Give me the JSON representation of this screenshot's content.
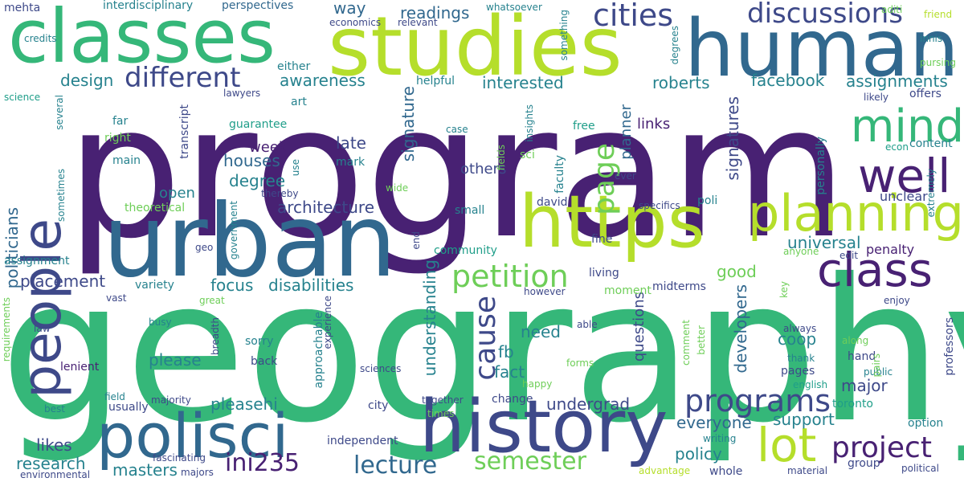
{
  "palette": {
    "background": "#ffffff",
    "dark_purple": "#482173",
    "indigo": "#3e4989",
    "blue": "#31688e",
    "teal": "#26828e",
    "sea_green": "#1f9e89",
    "green": "#35b779",
    "light_green": "#6ece58",
    "lime": "#b5de2b"
  },
  "words": [
    "program",
    "geography",
    "urban",
    "studies",
    "human",
    "classes",
    "history",
    "https",
    "polisci",
    "people",
    "planning",
    "class",
    "lot",
    "well",
    "mind",
    "cities",
    "discussions",
    "different",
    "petition",
    "programs",
    "project",
    "cause",
    "page",
    "semester",
    "lecture",
    "ini235",
    "architecture",
    "signatures",
    "developers",
    "signature",
    "degree",
    "houses",
    "interested",
    "readings",
    "way",
    "awareness",
    "design",
    "facebook",
    "assignments",
    "roberts",
    "universal",
    "support",
    "good",
    "focus",
    "disabilities",
    "placement",
    "please",
    "pleasehi",
    "understanding",
    "need",
    "fact",
    "fb",
    "undergrad",
    "everyone",
    "coop",
    "major",
    "politicians",
    "research",
    "likes",
    "masters",
    "policy",
    "independent",
    "questions",
    "late",
    "week",
    "open",
    "others",
    "links",
    "planner",
    "mark",
    "transcript",
    "theoretical",
    "interdisciplinary",
    "perspectives",
    "mehta",
    "credits",
    "economics",
    "relevant",
    "whatsoever",
    "aditi",
    "friend",
    "innis",
    "pursing",
    "degrees",
    "something",
    "either",
    "helpful",
    "lawyers",
    "art",
    "science",
    "several",
    "far",
    "right",
    "main",
    "guarantee",
    "use",
    "case",
    "insights",
    "fields",
    "sci",
    "free",
    "faculty",
    "ever",
    "likely",
    "offers",
    "econ",
    "content",
    "extremely",
    "personally",
    "unclear",
    "poli",
    "specifics",
    "david",
    "small",
    "wide",
    "thereby",
    "government",
    "geo",
    "sometimes",
    "assignment",
    "end",
    "community",
    "fine",
    "living",
    "penalty",
    "anyone",
    "edit",
    "midterms",
    "moment",
    "however",
    "variety",
    "vast",
    "great",
    "requirements",
    "law",
    "busy",
    "breadth",
    "experience",
    "approachable",
    "sorry",
    "back",
    "lenient",
    "able",
    "forms",
    "comment",
    "better",
    "always",
    "thank",
    "pages",
    "english",
    "hand",
    "public",
    "pairs",
    "key",
    "enjoy",
    "professors",
    "along",
    "sciences",
    "happy",
    "change",
    "city",
    "together",
    "times",
    "toronto",
    "option",
    "field",
    "best",
    "majority",
    "usually",
    "writing",
    "group",
    "whole",
    "advantage",
    "material",
    "political",
    "fascinating",
    "majors",
    "environmental"
  ]
}
